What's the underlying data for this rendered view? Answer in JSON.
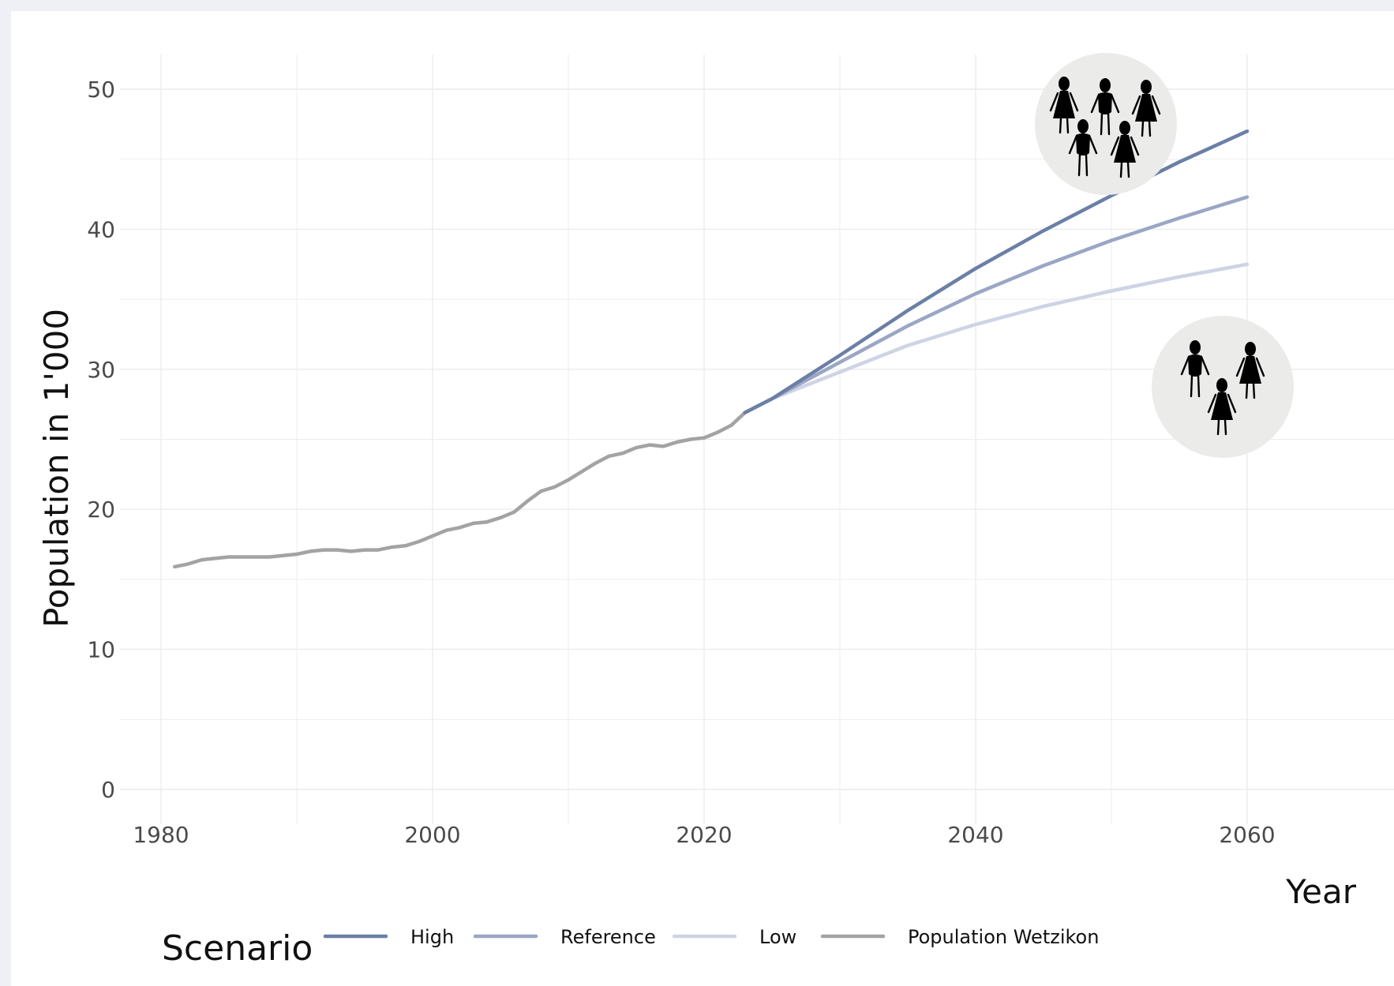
{
  "chart_data": {
    "type": "line",
    "xlabel": "Year",
    "ylabel": "Population in 1'000",
    "xlim": [
      1980,
      2060
    ],
    "ylim": [
      0,
      50
    ],
    "x_ticks": [
      "1980",
      "2000",
      "2020",
      "2040",
      "2060"
    ],
    "y_ticks": [
      "0",
      "10",
      "20",
      "30",
      "40",
      "50"
    ],
    "grid": true,
    "legend": {
      "title": "Scenario",
      "placement": "bottom",
      "entries": [
        "High",
        "Reference",
        "Low",
        "Population Wetzikon"
      ]
    },
    "series": [
      {
        "name": "Population Wetzikon",
        "color": "#a3a3a3",
        "x": [
          1981,
          1982,
          1983,
          1984,
          1985,
          1986,
          1987,
          1988,
          1989,
          1990,
          1991,
          1992,
          1993,
          1994,
          1995,
          1996,
          1997,
          1998,
          1999,
          2000,
          2001,
          2002,
          2003,
          2004,
          2005,
          2006,
          2007,
          2008,
          2009,
          2010,
          2011,
          2012,
          2013,
          2014,
          2015,
          2016,
          2017,
          2018,
          2019,
          2020,
          2021,
          2022,
          2023
        ],
        "y": [
          15.9,
          16.1,
          16.4,
          16.5,
          16.6,
          16.6,
          16.6,
          16.6,
          16.7,
          16.8,
          17.0,
          17.1,
          17.1,
          17.0,
          17.1,
          17.1,
          17.3,
          17.4,
          17.7,
          18.1,
          18.5,
          18.7,
          19.0,
          19.1,
          19.4,
          19.8,
          20.6,
          21.3,
          21.6,
          22.1,
          22.7,
          23.3,
          23.8,
          24.0,
          24.4,
          24.6,
          24.5,
          24.8,
          25.0,
          25.1,
          25.5,
          26.0,
          26.9
        ]
      },
      {
        "name": "High",
        "color": "#6b7fa6",
        "x": [
          2023,
          2025,
          2030,
          2035,
          2040,
          2045,
          2050,
          2055,
          2060
        ],
        "y": [
          26.9,
          27.9,
          31.0,
          34.2,
          37.2,
          39.9,
          42.4,
          44.8,
          47.0
        ]
      },
      {
        "name": "Reference",
        "color": "#9aa6c5",
        "x": [
          2023,
          2025,
          2030,
          2035,
          2040,
          2045,
          2050,
          2055,
          2060
        ],
        "y": [
          26.9,
          27.9,
          30.5,
          33.1,
          35.4,
          37.4,
          39.2,
          40.8,
          42.3
        ]
      },
      {
        "name": "Low",
        "color": "#ced3e5",
        "x": [
          2023,
          2025,
          2030,
          2035,
          2040,
          2045,
          2050,
          2055,
          2060
        ],
        "y": [
          26.9,
          27.9,
          29.8,
          31.7,
          33.2,
          34.5,
          35.6,
          36.6,
          37.5
        ]
      }
    ]
  },
  "icons": {
    "high_group": "crowd-of-five-people-icon",
    "low_group": "group-of-three-people-icon"
  }
}
